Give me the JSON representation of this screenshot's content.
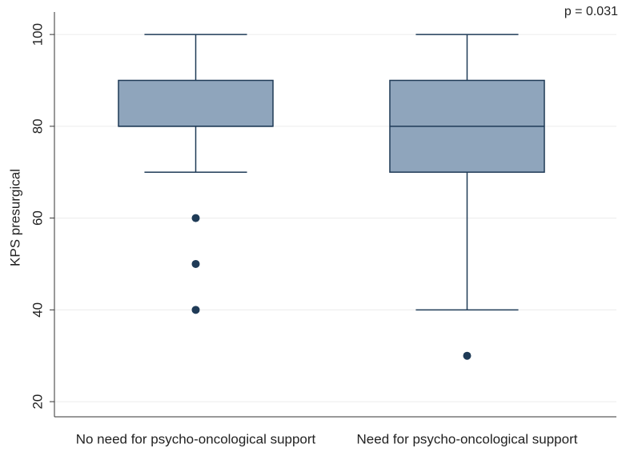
{
  "chart_data": {
    "type": "box",
    "annotation": "p = 0.031",
    "y_label": "KPS presurgical",
    "categories": [
      "No need for psycho-oncological support",
      "Need for psycho-oncological support"
    ],
    "boxes": [
      {
        "whislo": 70,
        "q1": 80,
        "med": 80,
        "q3": 90,
        "whishi": 100,
        "fliers": [
          60,
          50,
          40
        ]
      },
      {
        "whislo": 40,
        "q1": 70,
        "med": 80,
        "q3": 90,
        "whishi": 100,
        "fliers": [
          30
        ]
      }
    ],
    "color": "#8fa5bc",
    "edge_color": "#1f3b57",
    "ylim": [
      16.7,
      104.9
    ],
    "yticks": [
      20,
      40,
      60,
      80,
      100
    ],
    "grid": true
  }
}
